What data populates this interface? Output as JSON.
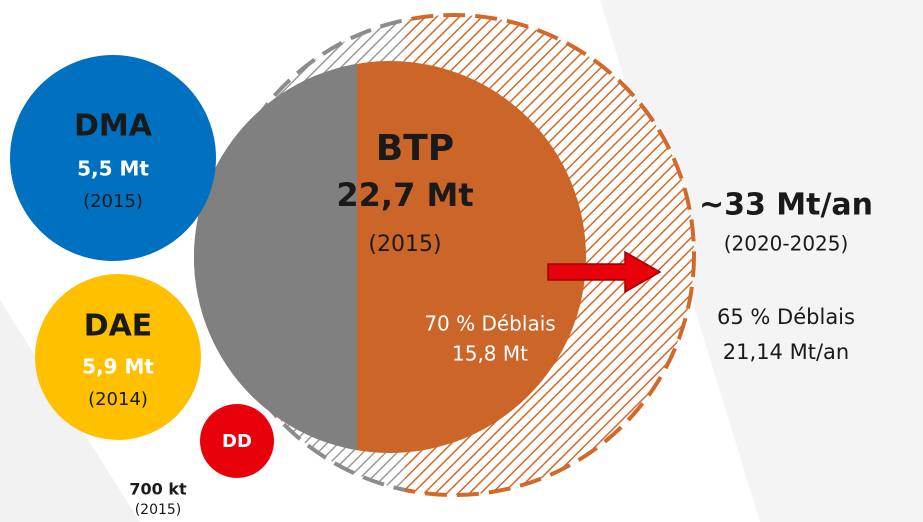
{
  "dma": {
    "label": "DMA",
    "amount": "5,5 Mt",
    "year": "(2015)"
  },
  "dae": {
    "label": "DAE",
    "amount": "5,9 Mt",
    "year": "(2014)"
  },
  "dd": {
    "label": "DD",
    "amount": "700 kt",
    "year": "(2015)"
  },
  "btp": {
    "label": "BTP",
    "amount": "22,7 Mt",
    "year": "(2015)",
    "deblais_share": "70 % Déblais",
    "deblais_amount": "15,8 Mt"
  },
  "projection": {
    "amount": "~33 Mt/an",
    "period": "(2020-2025)",
    "deblais_share": "65 % Déblais",
    "deblais_amount": "21,14 Mt/an"
  }
}
